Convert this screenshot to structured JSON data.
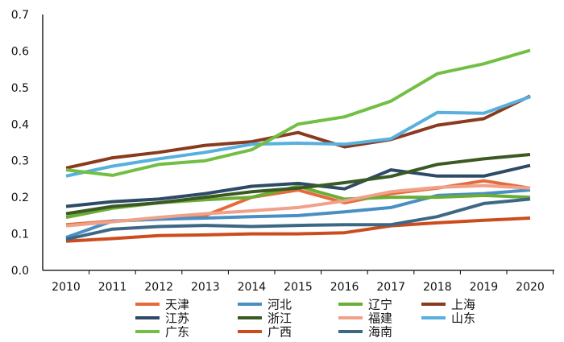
{
  "chart_data": {
    "type": "line",
    "x": [
      "2010",
      "2011",
      "2012",
      "2013",
      "2014",
      "2015",
      "2016",
      "2017",
      "2018",
      "2019",
      "2020"
    ],
    "ylim": [
      0,
      0.7
    ],
    "yticks": [
      "0.0",
      "0.1",
      "0.2",
      "0.3",
      "0.4",
      "0.5",
      "0.6",
      "0.7"
    ],
    "grid": false,
    "legend_position": "bottom",
    "series": [
      {
        "name": "天津",
        "color": "#e46c3c",
        "values": [
          0.125,
          0.135,
          0.14,
          0.15,
          0.2,
          0.22,
          0.185,
          0.21,
          0.225,
          0.245,
          0.225
        ]
      },
      {
        "name": "河北",
        "color": "#4a8fc4",
        "values": [
          0.09,
          0.135,
          0.14,
          0.143,
          0.147,
          0.15,
          0.16,
          0.172,
          0.205,
          0.21,
          0.22
        ]
      },
      {
        "name": "辽宁",
        "color": "#6cae35",
        "values": [
          0.145,
          0.17,
          0.185,
          0.193,
          0.2,
          0.23,
          0.195,
          0.2,
          0.2,
          0.205,
          0.2
        ]
      },
      {
        "name": "上海",
        "color": "#8a3b1e",
        "values": [
          0.28,
          0.308,
          0.323,
          0.342,
          0.352,
          0.377,
          0.338,
          0.358,
          0.397,
          0.415,
          0.477
        ]
      },
      {
        "name": "江苏",
        "color": "#2d4a67",
        "values": [
          0.175,
          0.188,
          0.195,
          0.21,
          0.23,
          0.238,
          0.223,
          0.275,
          0.258,
          0.258,
          0.287
        ]
      },
      {
        "name": "浙江",
        "color": "#3b5a23",
        "values": [
          0.155,
          0.175,
          0.185,
          0.2,
          0.215,
          0.225,
          0.24,
          0.257,
          0.29,
          0.305,
          0.317
        ]
      },
      {
        "name": "福建",
        "color": "#f0a18a",
        "values": [
          0.122,
          0.133,
          0.145,
          0.155,
          0.163,
          0.172,
          0.19,
          0.215,
          0.227,
          0.232,
          0.225
        ]
      },
      {
        "name": "山东",
        "color": "#57b0de",
        "values": [
          0.258,
          0.285,
          0.305,
          0.323,
          0.345,
          0.348,
          0.345,
          0.36,
          0.432,
          0.43,
          0.475
        ]
      },
      {
        "name": "广东",
        "color": "#72bf44",
        "values": [
          0.275,
          0.26,
          0.29,
          0.3,
          0.33,
          0.4,
          0.42,
          0.463,
          0.538,
          0.565,
          0.602
        ]
      },
      {
        "name": "广西",
        "color": "#cc4c1d",
        "values": [
          0.08,
          0.087,
          0.095,
          0.097,
          0.1,
          0.1,
          0.103,
          0.122,
          0.13,
          0.137,
          0.143
        ]
      },
      {
        "name": "海南",
        "color": "#3d6885",
        "values": [
          0.085,
          0.113,
          0.12,
          0.123,
          0.12,
          0.123,
          0.125,
          0.125,
          0.147,
          0.183,
          0.195
        ]
      }
    ]
  }
}
